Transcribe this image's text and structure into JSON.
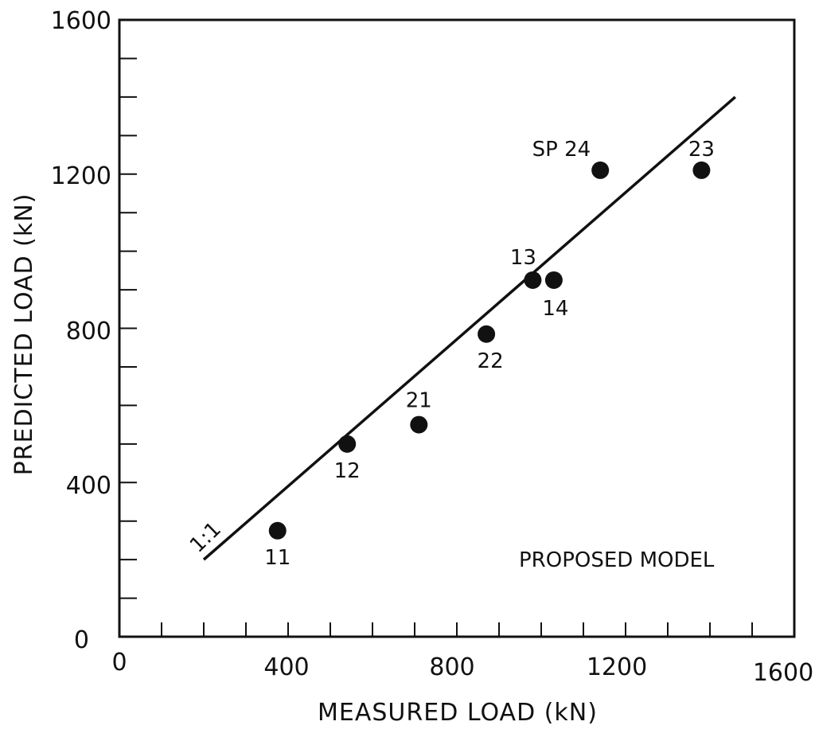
{
  "chart_data": {
    "type": "scatter",
    "xlabel": "MEASURED LOAD (kN)",
    "ylabel": "PREDICTED LOAD (kN)",
    "xlim": [
      0,
      1600
    ],
    "ylim": [
      0,
      1600
    ],
    "x_ticks": [
      "0",
      "400",
      "800",
      "1200",
      "1600"
    ],
    "y_ticks": [
      "0",
      "400",
      "800",
      "1200",
      "1600"
    ],
    "grid": false,
    "annotation": "PROPOSED MODEL",
    "reference_line": {
      "label": "1:1",
      "from": [
        200,
        200
      ],
      "to": [
        1460,
        1400
      ]
    },
    "points": [
      {
        "label": "11",
        "x": 375,
        "y": 275
      },
      {
        "label": "12",
        "x": 540,
        "y": 500
      },
      {
        "label": "21",
        "x": 710,
        "y": 550
      },
      {
        "label": "22",
        "x": 870,
        "y": 785
      },
      {
        "label": "13",
        "x": 980,
        "y": 925
      },
      {
        "label": "14",
        "x": 1030,
        "y": 925
      },
      {
        "label": "SP 24",
        "x": 1140,
        "y": 1210
      },
      {
        "label": "23",
        "x": 1380,
        "y": 1210
      }
    ]
  }
}
